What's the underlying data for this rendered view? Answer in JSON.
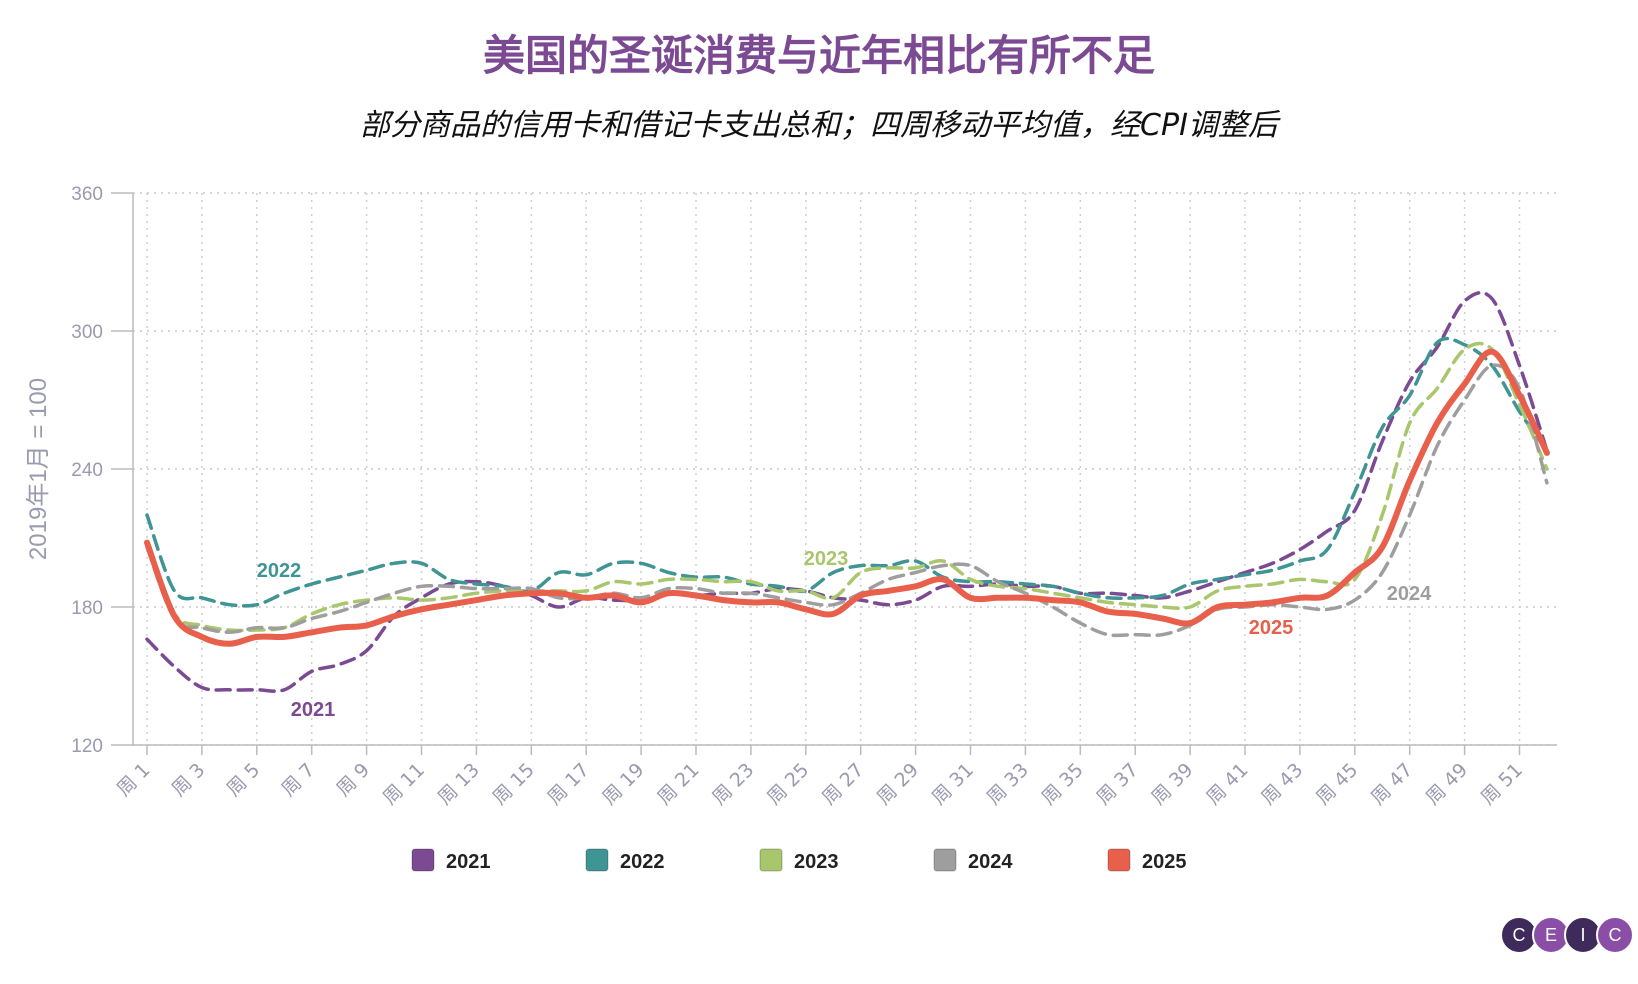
{
  "title": "美国的圣诞消费与近年相比有所不足",
  "subtitle": "部分商品的信用卡和借记卡支出总和；四周移动平均值，经CPI调整后",
  "logo": [
    "C",
    "E",
    "I",
    "C"
  ],
  "chart_data": {
    "type": "line",
    "title": "美国的圣诞消费与近年相比有所不足",
    "subtitle": "部分商品的信用卡和借记卡支出总和；四周移动平均值，经CPI调整后",
    "xlabel": "",
    "ylabel": "2019年1月 = 100",
    "ylim": [
      120,
      360
    ],
    "yticks": [
      120,
      180,
      240,
      300,
      360
    ],
    "x": [
      1,
      2,
      3,
      4,
      5,
      6,
      7,
      8,
      9,
      10,
      11,
      12,
      13,
      14,
      15,
      16,
      17,
      18,
      19,
      20,
      21,
      22,
      23,
      24,
      25,
      26,
      27,
      28,
      29,
      30,
      31,
      32,
      33,
      34,
      35,
      36,
      37,
      38,
      39,
      40,
      41,
      42,
      43,
      44,
      45,
      46,
      47,
      48,
      49,
      50,
      51,
      52
    ],
    "xtick_labels": [
      "周 1",
      "周 3",
      "周 5",
      "周 7",
      "周 9",
      "周 11",
      "周 13",
      "周 15",
      "周 17",
      "周 19",
      "周 21",
      "周 23",
      "周 25",
      "周 27",
      "周 29",
      "周 31",
      "周 33",
      "周 35",
      "周 37",
      "周 39",
      "周 41",
      "周 43",
      "周 45",
      "周 47",
      "周 49",
      "周 51"
    ],
    "grid": true,
    "legend": "bottom",
    "series": [
      {
        "name": "2021",
        "color": "#7b4a93",
        "dash": true,
        "label": "2021",
        "values": [
          166,
          154,
          145,
          144,
          144,
          144,
          152,
          155,
          161,
          176,
          184,
          190,
          191,
          189,
          185,
          180,
          184,
          183,
          183,
          186,
          185,
          186,
          186,
          188,
          187,
          184,
          183,
          181,
          183,
          189,
          189,
          190,
          189,
          189,
          186,
          186,
          185,
          184,
          187,
          191,
          195,
          199,
          205,
          213,
          222,
          252,
          278,
          293,
          313,
          314,
          285,
          248
        ]
      },
      {
        "name": "2022",
        "color": "#3f9494",
        "dash": true,
        "label": "2022",
        "values": [
          220,
          187,
          184,
          181,
          181,
          186,
          190,
          193,
          196,
          199,
          199,
          192,
          190,
          189,
          187,
          195,
          194,
          199,
          199,
          195,
          193,
          193,
          190,
          189,
          187,
          195,
          198,
          198,
          200,
          193,
          191,
          191,
          190,
          189,
          186,
          184,
          184,
          185,
          190,
          192,
          194,
          196,
          200,
          205,
          230,
          258,
          272,
          295,
          294,
          285,
          265,
          248
        ]
      },
      {
        "name": "2023",
        "color": "#a8c66c",
        "dash": true,
        "label": "2023",
        "values": [
          207,
          177,
          172,
          170,
          170,
          171,
          177,
          181,
          183,
          184,
          183,
          184,
          186,
          187,
          187,
          187,
          187,
          191,
          190,
          192,
          192,
          191,
          191,
          187,
          187,
          184,
          195,
          197,
          197,
          200,
          192,
          189,
          188,
          186,
          184,
          182,
          181,
          180,
          180,
          187,
          189,
          190,
          192,
          191,
          192,
          220,
          260,
          275,
          292,
          292,
          268,
          240
        ]
      },
      {
        "name": "2024",
        "color": "#9e9e9e",
        "dash": true,
        "label": "2024",
        "values": [
          206,
          175,
          171,
          169,
          171,
          171,
          175,
          178,
          182,
          186,
          189,
          189,
          188,
          188,
          188,
          184,
          184,
          186,
          184,
          188,
          188,
          186,
          186,
          184,
          182,
          181,
          186,
          192,
          195,
          198,
          198,
          191,
          186,
          180,
          173,
          168,
          168,
          168,
          172,
          179,
          180,
          181,
          180,
          179,
          183,
          195,
          220,
          250,
          270,
          285,
          275,
          234
        ]
      },
      {
        "name": "2025",
        "color": "#e8604c",
        "dash": false,
        "label": "2025",
        "values": [
          208,
          176,
          167,
          164,
          167,
          167,
          169,
          171,
          172,
          176,
          179,
          181,
          183,
          185,
          186,
          186,
          184,
          185,
          182,
          186,
          185,
          183,
          182,
          182,
          179,
          177,
          185,
          187,
          189,
          192,
          184,
          184,
          184,
          183,
          182,
          178,
          177,
          175,
          173,
          180,
          181,
          182,
          184,
          185,
          195,
          206,
          235,
          260,
          277,
          291,
          272,
          247
        ]
      }
    ]
  }
}
